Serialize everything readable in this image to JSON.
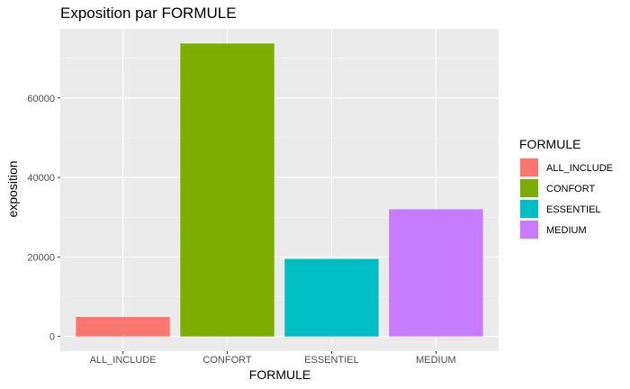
{
  "chart_data": {
    "type": "bar",
    "title": "Exposition par FORMULE",
    "xlabel": "FORMULE",
    "ylabel": "exposition",
    "categories": [
      "ALL_INCLUDE",
      "CONFORT",
      "ESSENTIEL",
      "MEDIUM"
    ],
    "values": [
      4900,
      73700,
      19500,
      32000
    ],
    "colors": [
      "#F8766D",
      "#7CAE00",
      "#00BFC4",
      "#C77CFF"
    ],
    "ylim": [
      -3700,
      77400
    ],
    "yticks": [
      0,
      20000,
      40000,
      60000
    ],
    "ytick_labels": [
      "0",
      "20000",
      "40000",
      "60000"
    ],
    "grid": true,
    "legend": {
      "title": "FORMULE",
      "position": "right",
      "entries": [
        "ALL_INCLUDE",
        "CONFORT",
        "ESSENTIEL",
        "MEDIUM"
      ]
    }
  },
  "style": {
    "panel_background": "#EBEBEB",
    "grid_major": "#FFFFFF",
    "grid_minor": "#F5F5F5",
    "tick_color": "#333333"
  }
}
